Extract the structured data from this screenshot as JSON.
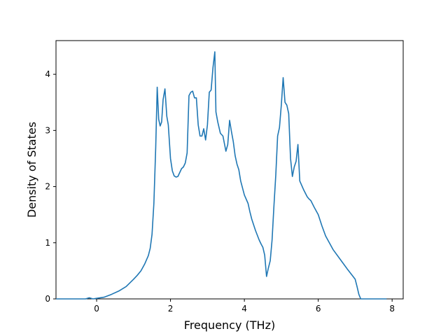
{
  "chart_data": {
    "type": "line",
    "title": "",
    "xlabel": "Frequency (THz)",
    "ylabel": "Density of States",
    "xlim": [
      -1.1,
      8.3
    ],
    "ylim": [
      0,
      4.6
    ],
    "xticks": [
      0,
      2,
      4,
      6,
      8
    ],
    "yticks": [
      0,
      1,
      2,
      3,
      4
    ],
    "xtick_labels": [
      "0",
      "2",
      "4",
      "6",
      "8"
    ],
    "ytick_labels": [
      "0",
      "1",
      "2",
      "3",
      "4"
    ],
    "grid": false,
    "legend": "none",
    "series": [
      {
        "color": "#1f77b4",
        "x": [
          -1.1,
          -0.5,
          -0.3,
          -0.2,
          -0.1,
          0.0,
          0.2,
          0.4,
          0.6,
          0.8,
          1.0,
          1.1,
          1.2,
          1.3,
          1.4,
          1.45,
          1.5,
          1.55,
          1.6,
          1.64,
          1.68,
          1.72,
          1.76,
          1.8,
          1.85,
          1.9,
          1.94,
          2.0,
          2.05,
          2.1,
          2.15,
          2.2,
          2.25,
          2.3,
          2.35,
          2.4,
          2.45,
          2.5,
          2.55,
          2.6,
          2.65,
          2.7,
          2.75,
          2.8,
          2.85,
          2.9,
          2.95,
          3.0,
          3.05,
          3.1,
          3.15,
          3.2,
          3.23,
          3.28,
          3.35,
          3.42,
          3.5,
          3.55,
          3.6,
          3.65,
          3.7,
          3.75,
          3.8,
          3.85,
          3.9,
          4.0,
          4.1,
          4.15,
          4.2,
          4.3,
          4.4,
          4.45,
          4.5,
          4.55,
          4.6,
          4.65,
          4.7,
          4.75,
          4.8,
          4.85,
          4.9,
          4.95,
          5.0,
          5.05,
          5.1,
          5.15,
          5.2,
          5.25,
          5.3,
          5.35,
          5.4,
          5.45,
          5.5,
          5.6,
          5.7,
          5.75,
          5.8,
          5.9,
          6.0,
          6.1,
          6.2,
          6.4,
          6.6,
          6.8,
          7.0,
          7.05,
          7.1,
          7.15,
          7.85
        ],
        "y": [
          0.0,
          0.0,
          0.0,
          0.02,
          0.0,
          0.01,
          0.03,
          0.08,
          0.14,
          0.22,
          0.35,
          0.42,
          0.5,
          0.62,
          0.77,
          0.9,
          1.15,
          1.7,
          2.7,
          3.77,
          3.2,
          3.08,
          3.15,
          3.55,
          3.74,
          3.25,
          3.1,
          2.5,
          2.28,
          2.19,
          2.17,
          2.18,
          2.25,
          2.32,
          2.35,
          2.42,
          2.6,
          3.62,
          3.68,
          3.7,
          3.58,
          3.58,
          3.1,
          2.9,
          2.9,
          3.03,
          2.83,
          3.1,
          3.68,
          3.72,
          4.12,
          4.4,
          3.33,
          3.15,
          2.95,
          2.9,
          2.63,
          2.75,
          3.18,
          2.98,
          2.8,
          2.55,
          2.4,
          2.3,
          2.1,
          1.85,
          1.7,
          1.55,
          1.42,
          1.22,
          1.05,
          0.98,
          0.92,
          0.78,
          0.4,
          0.55,
          0.68,
          1.05,
          1.65,
          2.2,
          2.9,
          3.05,
          3.45,
          3.94,
          3.5,
          3.45,
          3.3,
          2.5,
          2.18,
          2.35,
          2.45,
          2.75,
          2.1,
          1.95,
          1.82,
          1.78,
          1.75,
          1.62,
          1.5,
          1.3,
          1.12,
          0.88,
          0.7,
          0.52,
          0.35,
          0.22,
          0.08,
          0.0,
          0.0
        ]
      }
    ]
  }
}
